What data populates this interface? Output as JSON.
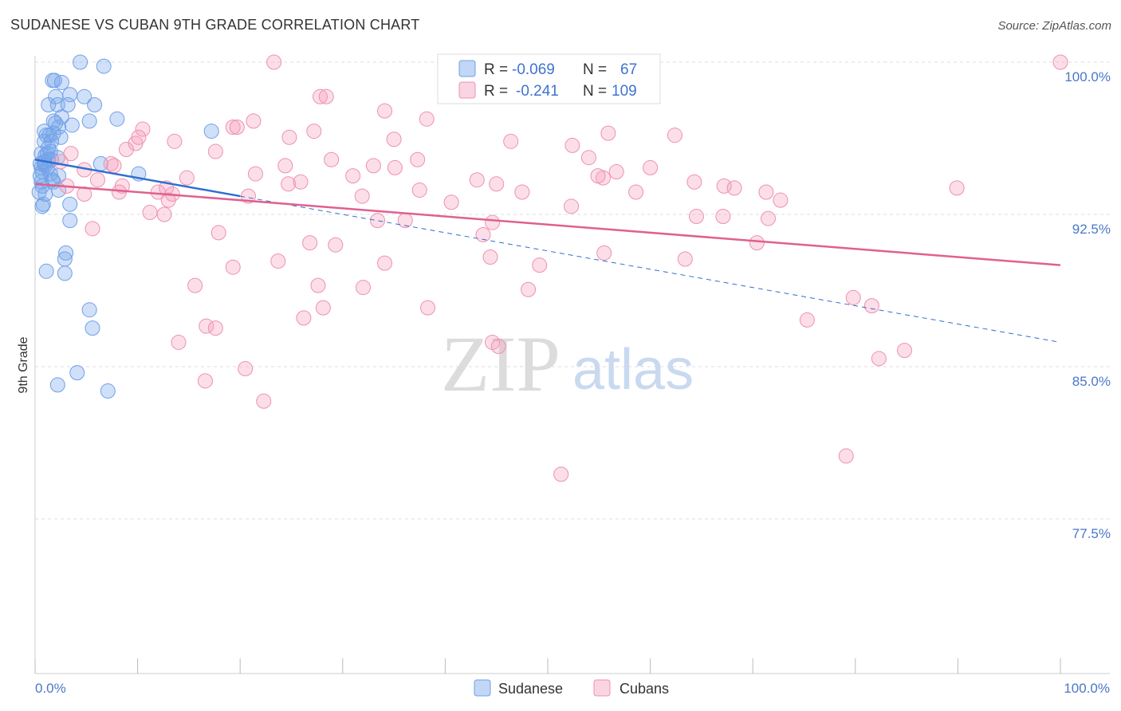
{
  "header": {
    "title": "SUDANESE VS CUBAN 9TH GRADE CORRELATION CHART",
    "source": "Source: ZipAtlas.com"
  },
  "colors": {
    "sudanese": "#6fa0e8",
    "sudanese_fill": "rgba(120,165,235,0.35)",
    "cubans": "#ee90b0",
    "cubans_fill": "rgba(245,160,190,0.35)",
    "sudanese_line": "#2e6fd0",
    "cubans_line": "#e06090",
    "tick_label": "#4a78c8"
  },
  "legend": {
    "rows": [
      {
        "r_label": "R =",
        "r_value": "-0.069",
        "n_label": "N =",
        "n_value": "67"
      },
      {
        "r_label": "R =",
        "r_value": "-0.241",
        "n_label": "N =",
        "n_value": "109"
      }
    ]
  },
  "watermark": {
    "zip": "ZIP",
    "atlas": "atlas"
  },
  "chart_data": {
    "type": "scatter",
    "title": "SUDANESE VS CUBAN 9TH GRADE CORRELATION CHART",
    "xlabel": "",
    "ylabel": "9th Grade",
    "xlim": [
      0,
      100
    ],
    "ylim": [
      70.0,
      101.0
    ],
    "x_tick_labels": [
      "0.0%",
      "100.0%"
    ],
    "y_ticks": [
      {
        "value": 100.0,
        "label": "100.0%"
      },
      {
        "value": 92.5,
        "label": "92.5%"
      },
      {
        "value": 85.0,
        "label": "85.0%"
      },
      {
        "value": 77.5,
        "label": "77.5%"
      }
    ],
    "legend_labels": [
      "Sudanese",
      "Cubans"
    ],
    "series": [
      {
        "name": "Sudanese",
        "trend": {
          "x": [
            0,
            20
          ],
          "y": [
            95.2,
            93.4
          ]
        },
        "trend_dashed": {
          "x": [
            20,
            100
          ],
          "y": [
            93.4,
            86.2
          ]
        },
        "points": [
          [
            4.4,
            100.0
          ],
          [
            6.7,
            99.8
          ],
          [
            1.7,
            99.1
          ],
          [
            1.9,
            99.1
          ],
          [
            2.6,
            99.0
          ],
          [
            2.0,
            98.3
          ],
          [
            4.8,
            98.3
          ],
          [
            3.4,
            98.4
          ],
          [
            1.3,
            97.9
          ],
          [
            2.2,
            97.9
          ],
          [
            3.2,
            97.9
          ],
          [
            5.8,
            97.9
          ],
          [
            1.8,
            97.1
          ],
          [
            2.6,
            97.3
          ],
          [
            5.3,
            97.1
          ],
          [
            8.0,
            97.2
          ],
          [
            2.3,
            96.8
          ],
          [
            3.6,
            96.9
          ],
          [
            2.0,
            97.0
          ],
          [
            0.9,
            96.6
          ],
          [
            1.4,
            96.4
          ],
          [
            1.8,
            96.5
          ],
          [
            2.5,
            96.3
          ],
          [
            17.2,
            96.6
          ],
          [
            0.9,
            96.1
          ],
          [
            1.1,
            96.4
          ],
          [
            1.6,
            96.1
          ],
          [
            0.6,
            95.5
          ],
          [
            1.2,
            95.5
          ],
          [
            1.5,
            95.6
          ],
          [
            1.6,
            95.2
          ],
          [
            0.9,
            95.0
          ],
          [
            1.3,
            95.2
          ],
          [
            1.0,
            95.4
          ],
          [
            0.5,
            95.0
          ],
          [
            0.6,
            94.8
          ],
          [
            0.7,
            94.6
          ],
          [
            1.2,
            94.8
          ],
          [
            1.0,
            94.9
          ],
          [
            1.5,
            94.5
          ],
          [
            6.4,
            95.0
          ],
          [
            10.1,
            94.5
          ],
          [
            2.3,
            94.4
          ],
          [
            0.6,
            94.1
          ],
          [
            1.8,
            94.1
          ],
          [
            0.7,
            93.9
          ],
          [
            2.3,
            93.7
          ],
          [
            0.4,
            93.6
          ],
          [
            0.8,
            93.0
          ],
          [
            3.4,
            93.0
          ],
          [
            0.7,
            92.9
          ],
          [
            3.4,
            92.2
          ],
          [
            3.0,
            90.6
          ],
          [
            2.9,
            90.3
          ],
          [
            1.1,
            89.7
          ],
          [
            2.9,
            89.6
          ],
          [
            5.3,
            87.8
          ],
          [
            5.6,
            86.9
          ],
          [
            4.1,
            84.7
          ],
          [
            2.2,
            84.1
          ],
          [
            7.1,
            83.8
          ],
          [
            1.3,
            95.8
          ],
          [
            2.2,
            95.3
          ],
          [
            0.9,
            95.1
          ],
          [
            0.5,
            94.4
          ],
          [
            1.7,
            94.2
          ],
          [
            1.0,
            93.5
          ]
        ]
      },
      {
        "name": "Cubans",
        "trend": {
          "x": [
            0,
            100
          ],
          "y": [
            94.0,
            90.0
          ]
        },
        "points": [
          [
            23.3,
            100.0
          ],
          [
            100.0,
            100.0
          ],
          [
            27.8,
            98.3
          ],
          [
            28.4,
            98.3
          ],
          [
            34.1,
            97.6
          ],
          [
            21.3,
            97.1
          ],
          [
            38.2,
            97.2
          ],
          [
            19.3,
            96.8
          ],
          [
            19.7,
            96.8
          ],
          [
            10.5,
            96.7
          ],
          [
            27.2,
            96.6
          ],
          [
            24.8,
            96.3
          ],
          [
            35.0,
            96.2
          ],
          [
            46.4,
            96.1
          ],
          [
            62.4,
            96.4
          ],
          [
            9.8,
            96.0
          ],
          [
            13.6,
            96.1
          ],
          [
            10.1,
            96.3
          ],
          [
            52.4,
            95.9
          ],
          [
            8.9,
            95.7
          ],
          [
            17.6,
            95.6
          ],
          [
            3.5,
            95.5
          ],
          [
            54.0,
            95.3
          ],
          [
            28.9,
            95.2
          ],
          [
            37.3,
            95.2
          ],
          [
            2.5,
            95.1
          ],
          [
            7.4,
            95.0
          ],
          [
            7.7,
            94.9
          ],
          [
            24.4,
            94.9
          ],
          [
            33.0,
            94.9
          ],
          [
            35.1,
            94.8
          ],
          [
            4.8,
            94.7
          ],
          [
            21.5,
            94.5
          ],
          [
            56.7,
            94.6
          ],
          [
            14.8,
            94.3
          ],
          [
            31.0,
            94.4
          ],
          [
            55.4,
            94.3
          ],
          [
            43.1,
            94.2
          ],
          [
            54.9,
            94.4
          ],
          [
            6.1,
            94.2
          ],
          [
            24.7,
            94.0
          ],
          [
            25.9,
            94.1
          ],
          [
            45.0,
            94.0
          ],
          [
            64.3,
            94.1
          ],
          [
            89.9,
            93.8
          ],
          [
            67.2,
            93.9
          ],
          [
            3.1,
            93.9
          ],
          [
            12.8,
            93.8
          ],
          [
            8.5,
            93.9
          ],
          [
            37.5,
            93.7
          ],
          [
            47.5,
            93.6
          ],
          [
            58.6,
            93.6
          ],
          [
            68.2,
            93.8
          ],
          [
            71.3,
            93.6
          ],
          [
            4.8,
            93.5
          ],
          [
            8.2,
            93.6
          ],
          [
            12.0,
            93.6
          ],
          [
            13.4,
            93.5
          ],
          [
            20.8,
            93.4
          ],
          [
            31.9,
            93.4
          ],
          [
            40.6,
            93.1
          ],
          [
            72.7,
            93.2
          ],
          [
            13.0,
            93.2
          ],
          [
            52.3,
            92.9
          ],
          [
            11.2,
            92.6
          ],
          [
            12.6,
            92.5
          ],
          [
            64.5,
            92.4
          ],
          [
            67.1,
            92.4
          ],
          [
            71.5,
            92.3
          ],
          [
            33.4,
            92.2
          ],
          [
            36.1,
            92.2
          ],
          [
            44.6,
            92.1
          ],
          [
            5.6,
            91.8
          ],
          [
            17.9,
            91.6
          ],
          [
            43.7,
            91.5
          ],
          [
            26.8,
            91.1
          ],
          [
            29.3,
            91.0
          ],
          [
            70.4,
            91.1
          ],
          [
            44.4,
            90.4
          ],
          [
            55.5,
            90.6
          ],
          [
            63.4,
            90.3
          ],
          [
            23.7,
            90.2
          ],
          [
            34.1,
            90.1
          ],
          [
            49.2,
            90.0
          ],
          [
            19.3,
            89.9
          ],
          [
            15.6,
            89.0
          ],
          [
            27.6,
            89.0
          ],
          [
            32.0,
            88.9
          ],
          [
            48.1,
            88.8
          ],
          [
            79.8,
            88.4
          ],
          [
            28.1,
            87.9
          ],
          [
            38.3,
            87.9
          ],
          [
            81.6,
            88.0
          ],
          [
            26.2,
            87.4
          ],
          [
            16.7,
            87.0
          ],
          [
            17.6,
            86.9
          ],
          [
            75.3,
            87.3
          ],
          [
            14.0,
            86.2
          ],
          [
            44.6,
            86.2
          ],
          [
            45.2,
            86.0
          ],
          [
            84.8,
            85.8
          ],
          [
            82.3,
            85.4
          ],
          [
            20.5,
            84.9
          ],
          [
            16.6,
            84.3
          ],
          [
            22.3,
            83.3
          ],
          [
            79.1,
            80.6
          ],
          [
            51.3,
            79.7
          ],
          [
            55.9,
            96.5
          ],
          [
            60.0,
            94.8
          ]
        ]
      }
    ]
  }
}
